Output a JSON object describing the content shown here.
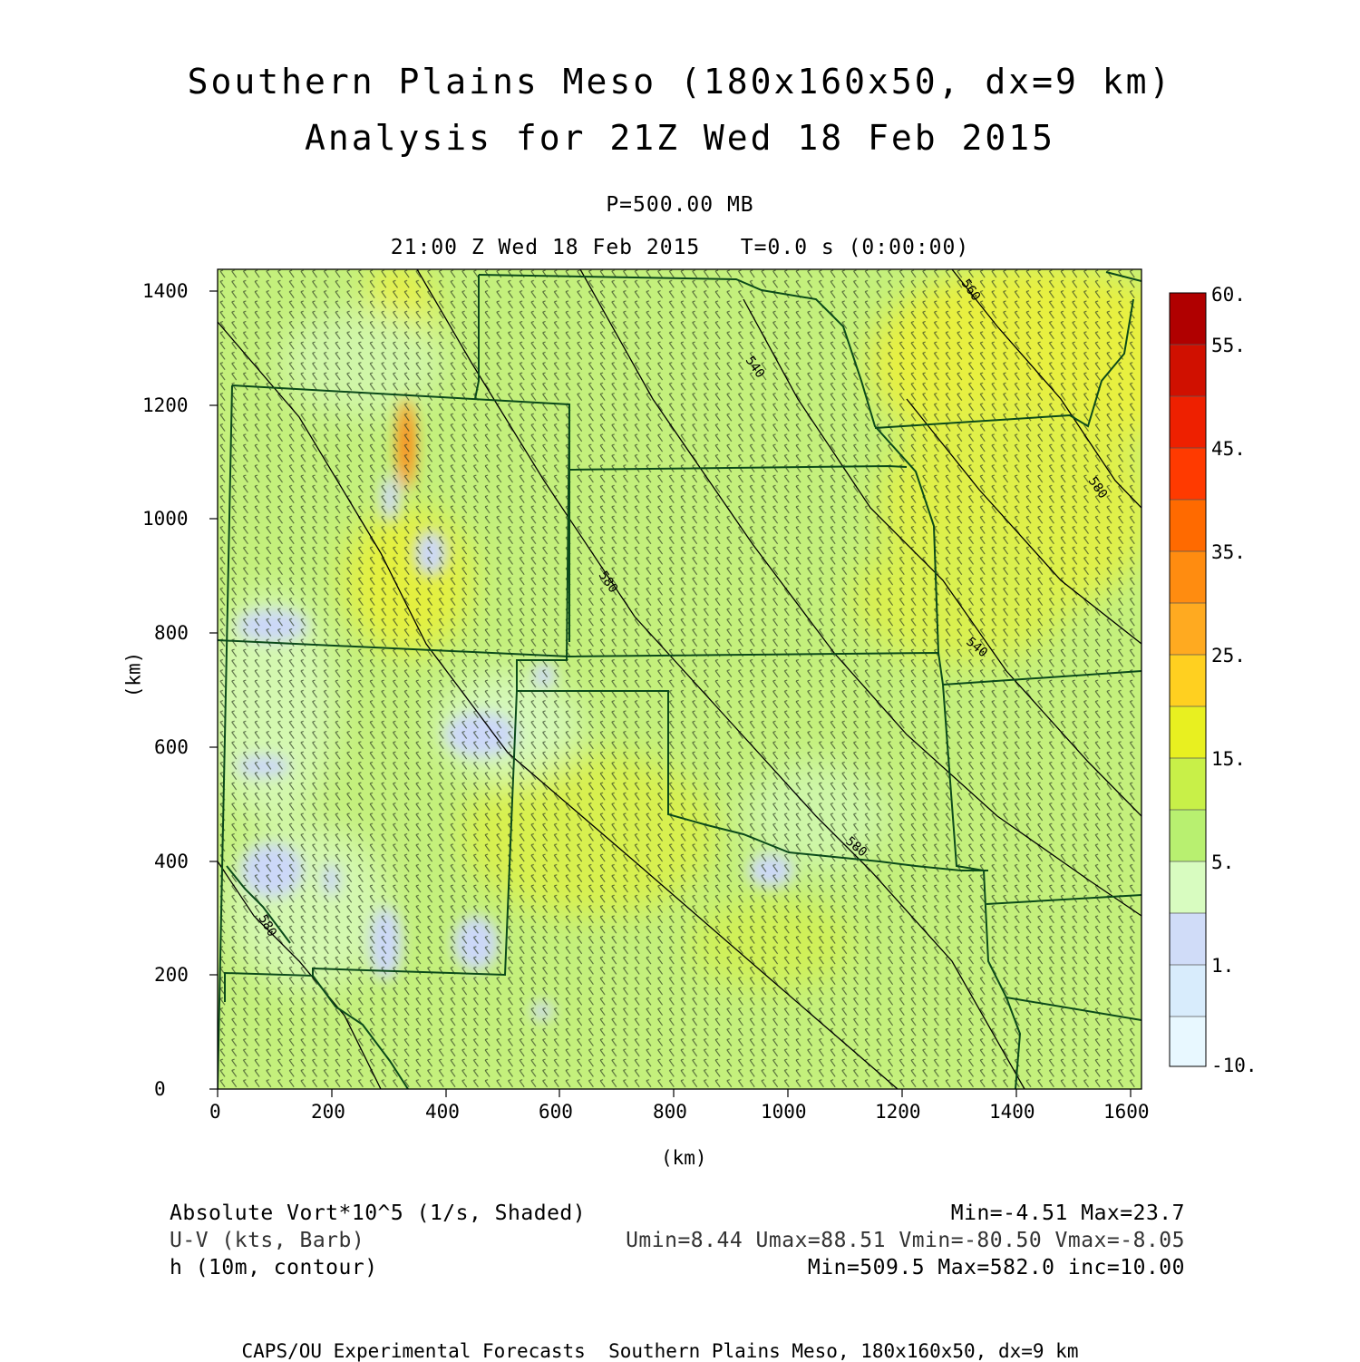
{
  "title": {
    "line1": "Southern Plains Meso (180x160x50, dx=9 km)",
    "line2": "Analysis for 21Z Wed 18 Feb 2015"
  },
  "subtitle": {
    "level": "P=500.00 MB",
    "time": "21:00 Z Wed 18 Feb 2015   T=0.0 s (0:00:00)"
  },
  "axes": {
    "x_unit": "(km)",
    "y_unit": "(km)",
    "x_ticks": [
      "0",
      "200",
      "400",
      "600",
      "800",
      "1000",
      "1200",
      "1400",
      "1600"
    ],
    "y_ticks": [
      "0",
      "200",
      "400",
      "600",
      "800",
      "1000",
      "1200",
      "1400"
    ],
    "x_range": [
      0,
      1620
    ],
    "y_range": [
      0,
      1440
    ]
  },
  "colorbar": {
    "labels": [
      "60.",
      "55.",
      "45.",
      "35.",
      "25.",
      "15.",
      "5.",
      "1.",
      "-10."
    ],
    "colors": [
      "#b00000",
      "#d01000",
      "#ee2000",
      "#ff3a00",
      "#ff6a00",
      "#ff8c10",
      "#ffaa20",
      "#ffd020",
      "#e8f020",
      "#c8f048",
      "#b8f070",
      "#c8f890",
      "#d8fcc0",
      "#d0dcf8",
      "#d8ecfc",
      "#e8f8ff"
    ]
  },
  "contours": {
    "labels": [
      "540",
      "580",
      "560",
      "540",
      "580",
      "580",
      "580"
    ]
  },
  "legend": {
    "left": [
      "Absolute Vort*10^5 (1/s, Shaded)",
      "U-V (kts, Barb)",
      "h (10m, contour)"
    ],
    "right": [
      "Min=-4.51 Max=23.7",
      "Umin=8.44 Umax=88.51 Vmin=-80.50 Vmax=-8.05",
      "Min=509.5 Max=582.0 inc=10.00"
    ]
  },
  "footer": "CAPS/OU Experimental Forecasts  Southern Plains Meso, 180x160x50, dx=9 km"
}
